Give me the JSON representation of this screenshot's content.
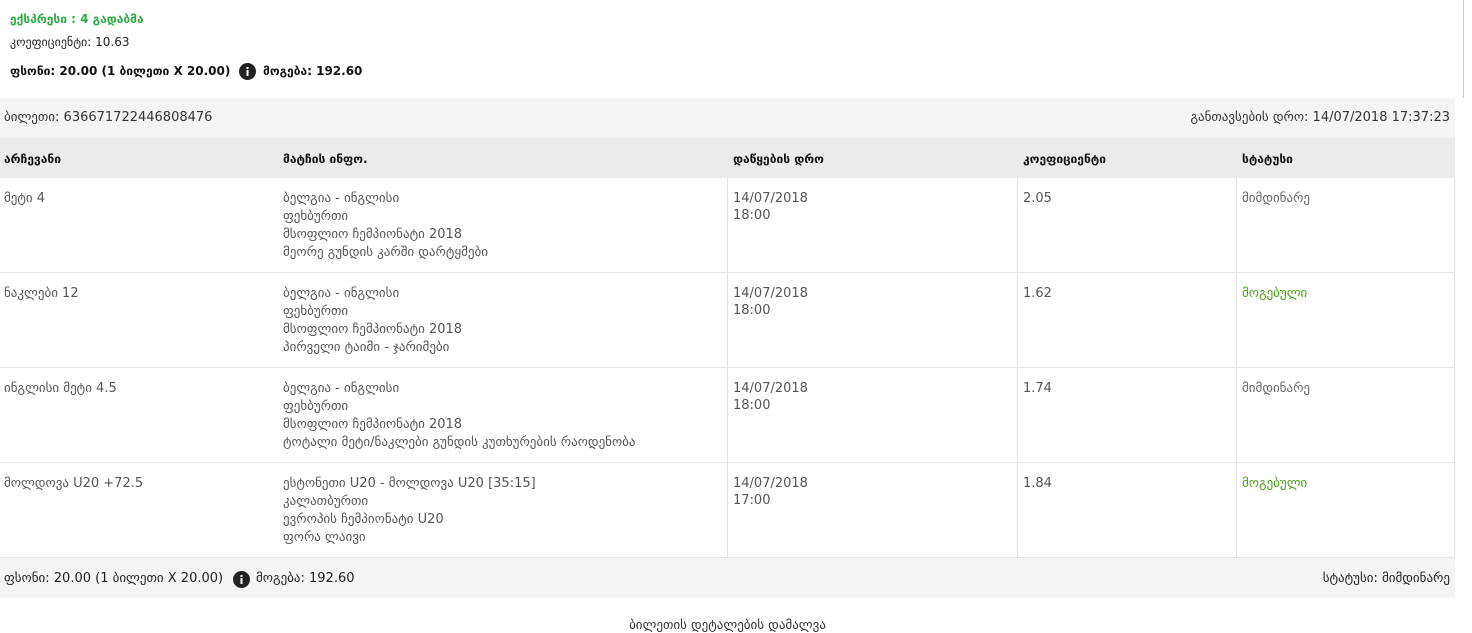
{
  "summary": {
    "title": "ექსპრესი : 4 გადაბმა",
    "odds": "კოეფიციენტი: 10.63",
    "stake": "ფსონი: 20.00 (1 ბილეთი X 20.00)",
    "win": "მოგება: 192.60"
  },
  "ticket": {
    "id": "ბილეთი: 636671722446808476",
    "placed": "განთავსების დრო: 14/07/2018 17:37:23"
  },
  "table": {
    "columns": [
      "არჩევანი",
      "მატჩის ინფო.",
      "დაწყების დრო",
      "კოეფიციენტი",
      "სტატუსი"
    ],
    "rows": [
      {
        "selection": "მეტი 4",
        "match": [
          "ბელგია - ინგლისი",
          "ფეხბურთი",
          "მსოფლიო ჩემპიონატი 2018",
          "მეორე გუნდის კარში დარტყმები"
        ],
        "start": [
          "14/07/2018",
          "18:00"
        ],
        "odds": "2.05",
        "status": "მიმდინარე",
        "status_color": "#666666"
      },
      {
        "selection": "ნაკლები 12",
        "match": [
          "ბელგია - ინგლისი",
          "ფეხბურთი",
          "მსოფლიო ჩემპიონატი 2018",
          "პირველი ტაიმი - ჯარიმები"
        ],
        "start": [
          "14/07/2018",
          "18:00"
        ],
        "odds": "1.62",
        "status": "მოგებული",
        "status_color": "#4a9e1c"
      },
      {
        "selection": "ინგლისი მეტი 4.5",
        "match": [
          "ბელგია - ინგლისი",
          "ფეხბურთი",
          "მსოფლიო ჩემპიონატი 2018",
          "ტოტალი მეტი/ნაკლები გუნდის კუთხურების რაოდენობა"
        ],
        "start": [
          "14/07/2018",
          "18:00"
        ],
        "odds": "1.74",
        "status": "მიმდინარე",
        "status_color": "#666666"
      },
      {
        "selection": "მოლდოვა U20 +72.5",
        "match": [
          "ესტონეთი U20 - მოლდოვა U20 [35:15]",
          "კალათბურთი",
          "ევროპის ჩემპიონატი U20",
          "ფორა ლაივი"
        ],
        "start": [
          "14/07/2018",
          "17:00"
        ],
        "odds": "1.84",
        "status": "მოგებული",
        "status_color": "#4a9e1c"
      }
    ]
  },
  "footer": {
    "stake": "ფსონი: 20.00 (1 ბილეთი X 20.00)",
    "win": "მოგება: 192.60",
    "status": "სტატუსი: მიმდინარე"
  },
  "toggle": "ბილეთის დეტალების დამალვა"
}
